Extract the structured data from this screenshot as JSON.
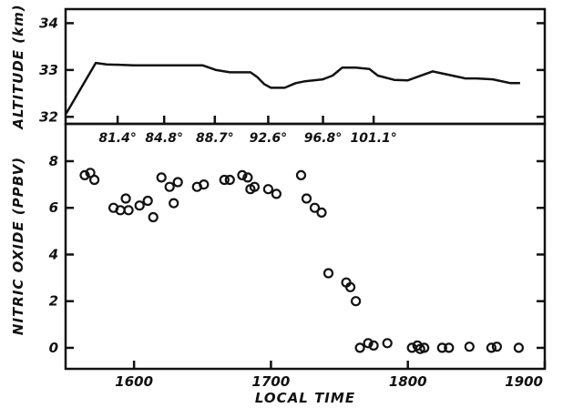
{
  "chart_data": [
    {
      "type": "line",
      "panel": "altitude",
      "ylabel": "ALTITUDE (km)",
      "ylim": [
        31.85,
        34.3
      ],
      "yticks": [
        32,
        33,
        34
      ],
      "ytick_labels": [
        "32",
        "33",
        "34"
      ],
      "x": [
        1550,
        1572,
        1580,
        1600,
        1620,
        1650,
        1660,
        1670,
        1678,
        1685,
        1690,
        1695,
        1700,
        1710,
        1718,
        1725,
        1738,
        1745,
        1752,
        1762,
        1772,
        1778,
        1790,
        1800,
        1818,
        1842,
        1850,
        1862,
        1875,
        1882
      ],
      "values": [
        32.05,
        33.15,
        33.12,
        33.1,
        33.1,
        33.1,
        33.0,
        32.95,
        32.95,
        32.95,
        32.85,
        32.7,
        32.62,
        32.62,
        32.72,
        32.76,
        32.8,
        32.88,
        33.05,
        33.05,
        33.02,
        32.88,
        32.79,
        32.78,
        32.97,
        32.82,
        32.82,
        32.8,
        32.72,
        32.72
      ],
      "annotations": [
        {
          "x": 1588,
          "label": "81.4°"
        },
        {
          "x": 1622,
          "label": "84.8°"
        },
        {
          "x": 1659,
          "label": "88.7°"
        },
        {
          "x": 1698,
          "label": "92.6°"
        },
        {
          "x": 1738,
          "label": "96.8°"
        },
        {
          "x": 1775,
          "label": "101.1°"
        }
      ]
    },
    {
      "type": "scatter",
      "panel": "nitric-oxide",
      "xlabel": "LOCAL TIME",
      "ylabel": "NITRIC OXIDE (PPBV)",
      "xlim": [
        1550,
        1900
      ],
      "ylim": [
        -0.9,
        9.6
      ],
      "xticks": [
        1600,
        1700,
        1800,
        1900
      ],
      "xtick_labels": [
        "1600",
        "1700",
        "1800",
        "1900"
      ],
      "yticks": [
        0,
        2,
        4,
        6,
        8
      ],
      "ytick_labels": [
        "0",
        "2",
        "4",
        "6",
        "8"
      ],
      "x": [
        1564,
        1568,
        1571,
        1585,
        1590,
        1594,
        1596,
        1604,
        1610,
        1614,
        1620,
        1626,
        1629,
        1632,
        1646,
        1651,
        1666,
        1670,
        1679,
        1683,
        1685,
        1688,
        1698,
        1704,
        1722,
        1726,
        1732,
        1737,
        1742,
        1755,
        1758,
        1762,
        1765,
        1771,
        1775,
        1785,
        1803,
        1807,
        1809,
        1812,
        1825,
        1830,
        1845,
        1861,
        1865,
        1881
      ],
      "values": [
        7.4,
        7.5,
        7.2,
        6.0,
        5.9,
        6.4,
        5.9,
        6.1,
        6.3,
        5.6,
        7.3,
        6.9,
        6.2,
        7.1,
        6.9,
        7.0,
        7.2,
        7.2,
        7.4,
        7.3,
        6.8,
        6.9,
        6.8,
        6.6,
        7.4,
        6.4,
        6.0,
        5.8,
        3.2,
        2.8,
        2.6,
        2.0,
        0.0,
        0.2,
        0.1,
        0.2,
        0.0,
        0.1,
        -0.05,
        0.0,
        0.0,
        0.0,
        0.05,
        0.0,
        0.05,
        0.0
      ]
    }
  ]
}
